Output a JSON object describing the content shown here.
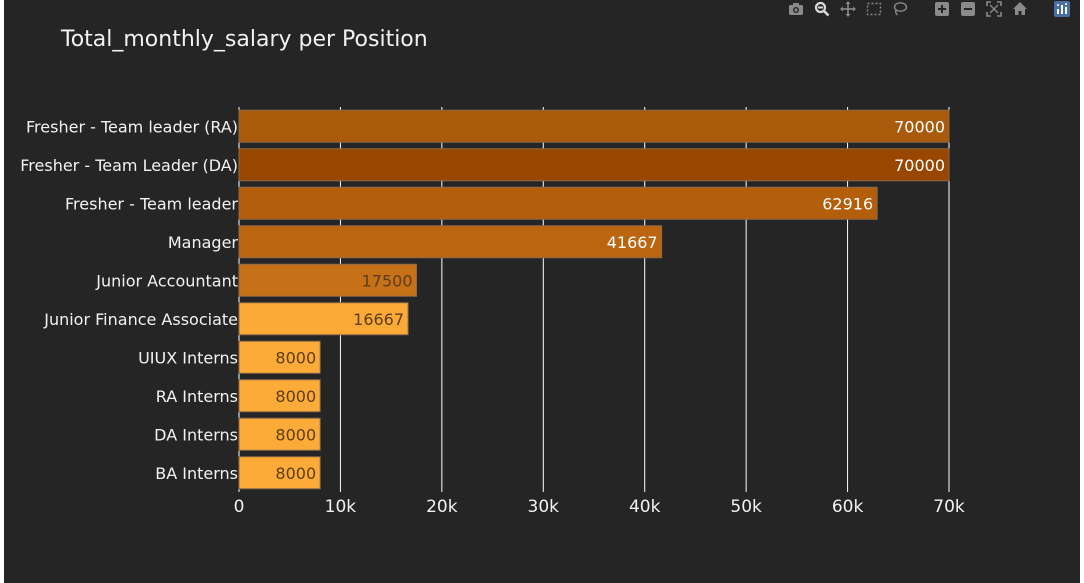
{
  "chart_data": {
    "type": "bar",
    "orientation": "horizontal",
    "title": "Total_monthly_salary per Position",
    "xlabel": "",
    "ylabel": "",
    "xlim": [
      0,
      70000
    ],
    "grid": true,
    "x_ticks": [
      {
        "value": 0,
        "label": "0"
      },
      {
        "value": 10000,
        "label": "10k"
      },
      {
        "value": 20000,
        "label": "20k"
      },
      {
        "value": 30000,
        "label": "30k"
      },
      {
        "value": 40000,
        "label": "40k"
      },
      {
        "value": 50000,
        "label": "50k"
      },
      {
        "value": 60000,
        "label": "60k"
      },
      {
        "value": 70000,
        "label": "70k"
      }
    ],
    "categories": [
      "Fresher - Team leader (RA)",
      "Fresher - Team Leader (DA)",
      "Fresher - Team leader",
      "Manager",
      "Junior Accountant",
      "Junior Finance Associate",
      "UIUX Interns",
      "RA Interns",
      "DA Interns",
      "BA Interns"
    ],
    "values": [
      70000,
      70000,
      62916,
      41667,
      17500,
      16667,
      8000,
      8000,
      8000,
      8000
    ],
    "value_labels": [
      "70000",
      "70000",
      "62916",
      "41667",
      "17500",
      "16667",
      "8000",
      "8000",
      "8000",
      "8000"
    ],
    "bar_colors": [
      "#a95a0b",
      "#994700",
      "#b25e0a",
      "#bb6510",
      "#c67017",
      "#fbaa37",
      "#fdab38",
      "#fdab38",
      "#fdab38",
      "#fdab38"
    ],
    "label_colors": [
      "#ffffff",
      "#ffffff",
      "#ffffff",
      "#ffffff",
      "#5a3e1c",
      "#5a3e1c",
      "#5a3e1c",
      "#5a3e1c",
      "#5a3e1c",
      "#5a3e1c"
    ]
  },
  "theme": {
    "panel_bg": "#252526",
    "grid_color": "#ffffff",
    "text_color": "#f2f2f2",
    "icon_color": "#8a8a8a",
    "icon_active_color": "#4a6fa5"
  },
  "modebar": {
    "icons": [
      "camera-icon",
      "zoom-icon",
      "pan-icon",
      "box-select-icon",
      "lasso-select-icon",
      "zoom-in-icon",
      "zoom-out-icon",
      "autoscale-icon",
      "reset-axes-icon",
      "plotly-logo-icon"
    ]
  }
}
